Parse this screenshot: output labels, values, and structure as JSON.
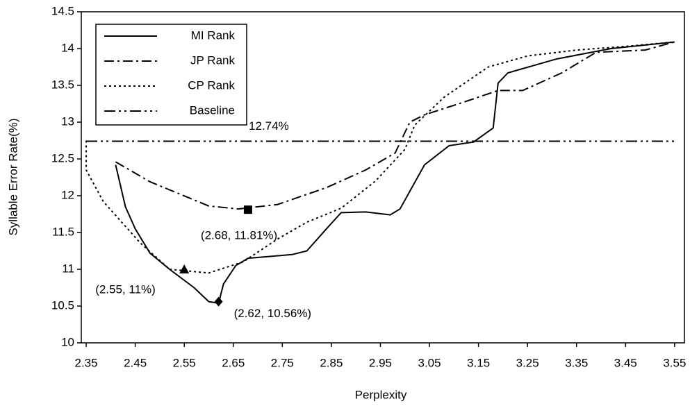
{
  "chart_data": {
    "type": "line",
    "xlabel": "Perplexity",
    "ylabel": "Syllable Error Rate(%)",
    "xlim": [
      2.34,
      3.57
    ],
    "ylim": [
      10,
      14.5
    ],
    "xticks": [
      2.35,
      2.45,
      2.55,
      2.65,
      2.75,
      2.85,
      2.95,
      3.05,
      3.15,
      3.25,
      3.35,
      3.45,
      3.55
    ],
    "yticks": [
      10,
      10.5,
      11,
      11.5,
      12,
      12.5,
      13,
      13.5,
      14,
      14.5
    ],
    "legend": "upper left",
    "series": [
      {
        "name": "MI Rank",
        "color": "#000000",
        "style": "solid",
        "x": [
          2.41,
          2.43,
          2.45,
          2.48,
          2.52,
          2.57,
          2.6,
          2.62,
          2.63,
          2.655,
          2.68,
          2.77,
          2.8,
          2.84,
          2.87,
          2.92,
          2.97,
          2.99,
          3.04,
          3.09,
          3.14,
          3.18,
          3.19,
          3.21,
          3.31,
          3.42,
          3.55
        ],
        "values": [
          12.42,
          11.85,
          11.55,
          11.22,
          11.0,
          10.75,
          10.56,
          10.54,
          10.8,
          11.05,
          11.15,
          11.2,
          11.25,
          11.55,
          11.77,
          11.78,
          11.74,
          11.82,
          12.42,
          12.68,
          12.73,
          12.92,
          13.53,
          13.67,
          13.86,
          14.0,
          14.09
        ]
      },
      {
        "name": "JP Rank",
        "color": "#000000",
        "style": "dashdot",
        "x": [
          2.41,
          2.48,
          2.56,
          2.6,
          2.66,
          2.74,
          2.84,
          2.92,
          2.98,
          3.01,
          3.04,
          3.11,
          3.19,
          3.24,
          3.32,
          3.39,
          3.49,
          3.55
        ],
        "values": [
          12.46,
          12.19,
          11.97,
          11.86,
          11.82,
          11.88,
          12.11,
          12.35,
          12.58,
          13.0,
          13.1,
          13.25,
          13.43,
          13.43,
          13.67,
          13.95,
          13.98,
          14.09
        ]
      },
      {
        "name": "CP Rank",
        "color": "#000000",
        "style": "dotted",
        "x": [
          2.35,
          2.35,
          2.385,
          2.46,
          2.52,
          2.6,
          2.67,
          2.74,
          2.8,
          2.87,
          2.94,
          3.0,
          3.02,
          3.08,
          3.17,
          3.25,
          3.35,
          3.45,
          3.55
        ],
        "values": [
          12.75,
          12.35,
          11.92,
          11.36,
          11.0,
          10.95,
          11.1,
          11.41,
          11.64,
          11.83,
          12.2,
          12.63,
          12.96,
          13.34,
          13.75,
          13.9,
          13.98,
          14.03,
          14.09
        ]
      },
      {
        "name": "Baseline",
        "color": "#000000",
        "style": "dashdotdot",
        "x": [
          2.35,
          3.55
        ],
        "values": [
          12.74,
          12.74
        ]
      }
    ],
    "annotations": [
      {
        "text": "(2.68, 11.81%)",
        "x": 2.68,
        "y": 11.81,
        "marker": "square"
      },
      {
        "text": "(2.55, 11%)",
        "x": 2.55,
        "y": 11,
        "marker": "triangle"
      },
      {
        "text": "(2.62, 10.56%)",
        "x": 2.62,
        "y": 10.56,
        "marker": "diamond"
      },
      {
        "text": "12.74%",
        "x": 2.35,
        "y": 12.74,
        "marker": "none"
      }
    ]
  }
}
